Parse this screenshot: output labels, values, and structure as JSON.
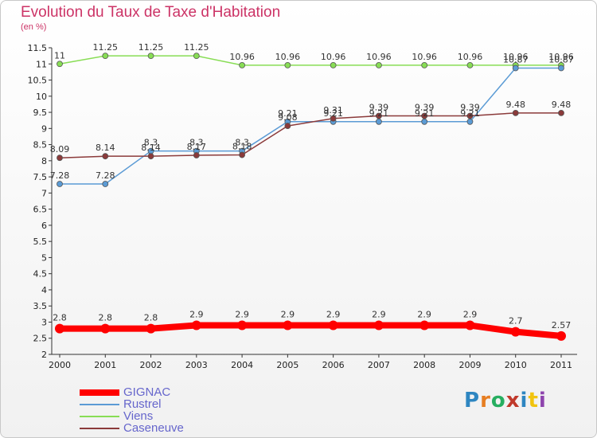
{
  "header": {
    "title": "Evolution du Taux de Taxe d'Habitation",
    "subtitle": "(en %)"
  },
  "logo": {
    "text": "Proxiti",
    "colors": [
      "#2e86c1",
      "#e67e22",
      "#27ae60",
      "#c0392b",
      "#2e86c1",
      "#f1c40f",
      "#8e44ad"
    ]
  },
  "chart_data": {
    "type": "line",
    "title": "Evolution du Taux de Taxe d'Habitation",
    "subtitle": "(en %)",
    "x": [
      "2000",
      "2001",
      "2002",
      "2003",
      "2004",
      "2005",
      "2006",
      "2007",
      "2008",
      "2009",
      "2010",
      "2011"
    ],
    "ylim": [
      2,
      11.5
    ],
    "yticks": [
      "2",
      "2.5",
      "3",
      "3.5",
      "4",
      "4.5",
      "5",
      "5.5",
      "6",
      "6.5",
      "7",
      "7.5",
      "8",
      "8.5",
      "9",
      "9.5",
      "10",
      "10.5",
      "11",
      "11.5"
    ],
    "grid": false,
    "legend": "bottom-left",
    "series": [
      {
        "name": "GIGNAC",
        "color": "#ff0000",
        "values": [
          2.8,
          2.8,
          2.8,
          2.9,
          2.9,
          2.9,
          2.9,
          2.9,
          2.9,
          2.9,
          2.7,
          2.57
        ],
        "labels": [
          "2.8",
          "2.8",
          "2.8",
          "2.9",
          "2.9",
          "2.9",
          "2.9",
          "2.9",
          "2.9",
          "2.9",
          "2.7",
          "2.57"
        ]
      },
      {
        "name": "Rustrel",
        "color": "#5b9bd5",
        "values": [
          7.28,
          7.28,
          8.3,
          8.3,
          8.3,
          9.21,
          9.21,
          9.21,
          9.21,
          9.21,
          10.87,
          10.87
        ],
        "labels": [
          "7.28",
          "7.28",
          "8.3",
          "8.3",
          "8.3",
          "9.21",
          "9.21",
          "9.21",
          "9.21",
          "9.21",
          "10.87",
          "10.87"
        ]
      },
      {
        "name": "Viens",
        "color": "#88dd55",
        "values": [
          11,
          11.25,
          11.25,
          11.25,
          10.96,
          10.96,
          10.96,
          10.96,
          10.96,
          10.96,
          10.96,
          10.96
        ],
        "labels": [
          "11",
          "11.25",
          "11.25",
          "11.25",
          "10.96",
          "10.96",
          "10.96",
          "10.96",
          "10.96",
          "10.96",
          "10.96",
          "10.96"
        ]
      },
      {
        "name": "Caseneuve",
        "color": "#8b3a3a",
        "values": [
          8.09,
          8.14,
          8.14,
          8.17,
          8.18,
          9.08,
          9.31,
          9.39,
          9.39,
          9.39,
          9.48,
          9.48
        ],
        "labels": [
          "8.09",
          "8.14",
          "8.14",
          "8.17",
          "8.18",
          "9.08",
          "9.31",
          "9.39",
          "9.39",
          "9.39",
          "9.48",
          "9.48"
        ]
      }
    ]
  }
}
